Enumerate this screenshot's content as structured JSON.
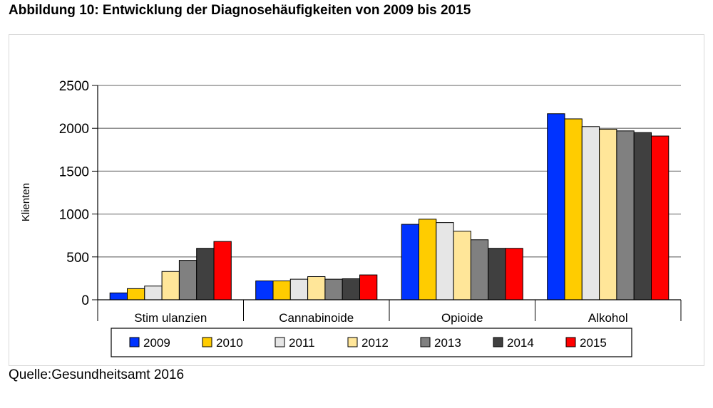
{
  "page": {
    "title": "Abbildung 10: Entwicklung der Diagnosehäufigkeiten von 2009 bis 2015",
    "source": "Quelle:Gesundheitsamt 2016"
  },
  "chart_data": {
    "type": "bar",
    "title": "",
    "xlabel": "",
    "ylabel": "Klienten",
    "ylim": [
      0,
      2500
    ],
    "yticks": [
      "0",
      "500",
      "1000",
      "1500",
      "2000",
      "2500"
    ],
    "grid": true,
    "legend_position": "bottom",
    "categories": [
      "Stim ulanzien",
      "Cannabinoide",
      "Opioide",
      "Alkohol"
    ],
    "series": [
      {
        "name": "2009",
        "color": "#0033ff",
        "values": [
          80,
          220,
          880,
          2170
        ]
      },
      {
        "name": "2010",
        "color": "#ffcc00",
        "values": [
          130,
          220,
          940,
          2110
        ]
      },
      {
        "name": "2011",
        "color": "#e6e6e6",
        "values": [
          160,
          240,
          900,
          2020
        ]
      },
      {
        "name": "2012",
        "color": "#ffe699",
        "values": [
          330,
          270,
          800,
          1990
        ]
      },
      {
        "name": "2013",
        "color": "#808080",
        "values": [
          460,
          240,
          700,
          1970
        ]
      },
      {
        "name": "2014",
        "color": "#404040",
        "values": [
          600,
          245,
          600,
          1950
        ]
      },
      {
        "name": "2015",
        "color": "#ff0000",
        "values": [
          680,
          290,
          600,
          1910
        ]
      }
    ]
  }
}
